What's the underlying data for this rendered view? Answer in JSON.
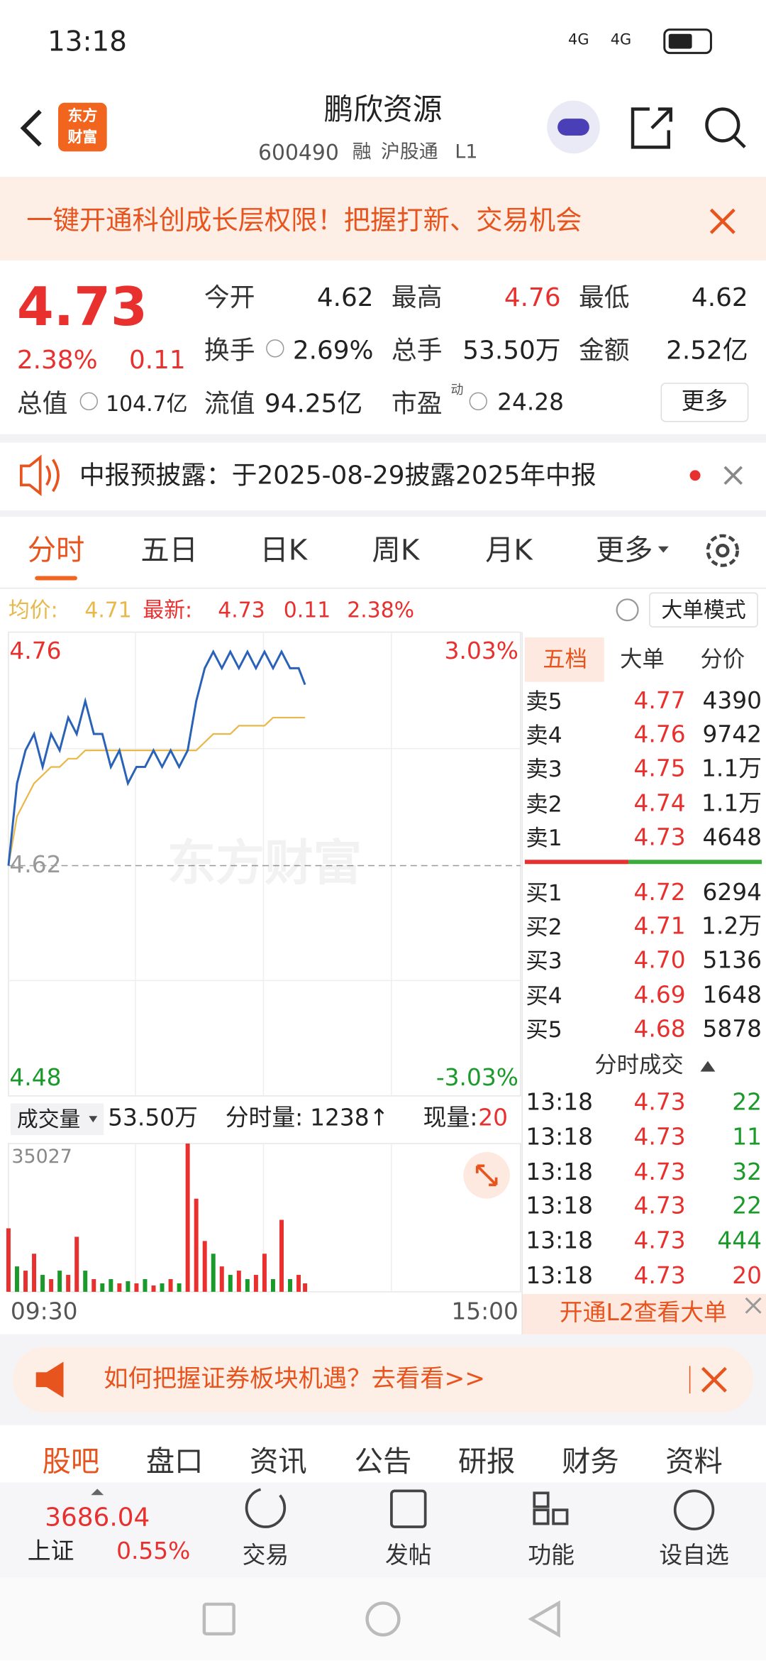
{
  "status": {
    "time": "13:18",
    "network": [
      "4G",
      "4G"
    ]
  },
  "header": {
    "logo": [
      "东方",
      "财富"
    ],
    "title": "鹏欣资源",
    "code": "600490",
    "tags": [
      "融",
      "沪股通",
      "L1"
    ]
  },
  "banner": "一键开通科创成长层权限！把握打新、交易机会",
  "quote": {
    "price": "4.73",
    "change_pct": "2.38%",
    "change": "0.11",
    "more": "更多",
    "stats": [
      {
        "label": "今开",
        "value": "4.62"
      },
      {
        "label": "最高",
        "value": "4.76"
      },
      {
        "label": "最低",
        "value": "4.62"
      },
      {
        "label": "换手",
        "value": "2.69%"
      },
      {
        "label": "总手",
        "value": "53.50万"
      },
      {
        "label": "金额",
        "value": "2.52亿"
      },
      {
        "label": "总值",
        "value": "104.7亿"
      },
      {
        "label": "流值",
        "value": "94.25亿"
      },
      {
        "label": "市盈",
        "sup": "动",
        "value": "24.28"
      }
    ]
  },
  "notice": "中报预披露：于2025-08-29披露2025年中报",
  "tabs": [
    "分时",
    "五日",
    "日K",
    "周K",
    "月K",
    "更多"
  ],
  "info": {
    "avg_label": "均价:",
    "avg": "4.71",
    "last_label": "最新:",
    "last": "4.73",
    "change": "0.11",
    "change_pct": "2.38%",
    "mode": "大单模式"
  },
  "intraday": {
    "watermark": "东方财富",
    "xlim": [
      0,
      240
    ],
    "xticks": [
      {
        "value": 0,
        "label": "09:30"
      },
      {
        "value": 240,
        "label": "15:00"
      }
    ],
    "ylim": [
      4.48,
      4.76
    ],
    "yticks": [
      4.76,
      4.62,
      4.48
    ],
    "y2lim": [
      -3.03,
      3.03
    ],
    "y2ticks": [
      {
        "value": 3.03,
        "label": "3.03%"
      },
      {
        "value": -3.03,
        "label": "-3.03%"
      }
    ],
    "x": [
      0,
      4,
      8,
      12,
      16,
      20,
      24,
      28,
      32,
      36,
      40,
      44,
      48,
      52,
      56,
      60,
      64,
      68,
      72,
      76,
      80,
      84,
      88,
      92,
      96,
      100,
      104,
      108,
      112,
      116,
      120,
      124,
      128,
      132,
      136,
      139
    ],
    "series": [
      {
        "color": "#2a62b8",
        "values": [
          4.62,
          4.67,
          4.69,
          4.7,
          4.68,
          4.7,
          4.69,
          4.71,
          4.7,
          4.72,
          4.7,
          4.7,
          4.68,
          4.69,
          4.67,
          4.68,
          4.68,
          4.69,
          4.68,
          4.69,
          4.68,
          4.69,
          4.72,
          4.74,
          4.75,
          4.74,
          4.75,
          4.74,
          4.75,
          4.74,
          4.75,
          4.74,
          4.75,
          4.74,
          4.74,
          4.73
        ]
      },
      {
        "color": "#e8b84a",
        "values": [
          4.62,
          4.65,
          4.66,
          4.67,
          4.675,
          4.68,
          4.68,
          4.685,
          4.685,
          4.69,
          4.69,
          4.69,
          4.69,
          4.69,
          4.69,
          4.69,
          4.69,
          4.69,
          4.69,
          4.69,
          4.69,
          4.69,
          4.69,
          4.695,
          4.7,
          4.7,
          4.7,
          4.705,
          4.705,
          4.705,
          4.705,
          4.71,
          4.71,
          4.71,
          4.71,
          4.71
        ]
      }
    ]
  },
  "volume": {
    "label": "成交量",
    "total": "53.50万",
    "minute_label": "分时量:",
    "minute": "1238↑",
    "current_label": "现量:",
    "current": "20",
    "ylim": [
      0,
      35027
    ],
    "yticks": [
      35027
    ],
    "values": [
      15000,
      6000,
      5000,
      9000,
      4000,
      3000,
      5000,
      4000,
      13000,
      5000,
      3000,
      2000,
      3000,
      2000,
      2500,
      2000,
      3000,
      1500,
      2000,
      3000,
      2000,
      35027,
      22000,
      12000,
      9000,
      6000,
      4000,
      5000,
      3000,
      4000,
      9000,
      3000,
      17000,
      3000,
      4000,
      2000
    ],
    "colors": [
      "#e8302e",
      "#1a9a2a",
      "#e8302e",
      "#e8302e",
      "#1a9a2a",
      "#e8302e",
      "#1a9a2a",
      "#e8302e",
      "#e8302e",
      "#1a9a2a",
      "#e8302e",
      "#1a9a2a",
      "#1a9a2a",
      "#e8302e",
      "#1a9a2a",
      "#e8302e",
      "#1a9a2a",
      "#e8302e",
      "#1a9a2a",
      "#e8302e",
      "#1a9a2a",
      "#e8302e",
      "#e8302e",
      "#e8302e",
      "#1a9a2a",
      "#e8302e",
      "#1a9a2a",
      "#e8302e",
      "#1a9a2a",
      "#e8302e",
      "#e8302e",
      "#1a9a2a",
      "#e8302e",
      "#1a9a2a",
      "#e8302e",
      "#e8302e"
    ]
  },
  "book": {
    "tabs": [
      "五档",
      "大单",
      "分价"
    ],
    "sell": [
      {
        "label": "卖5",
        "price": "4.77",
        "volume": "4390"
      },
      {
        "label": "卖4",
        "price": "4.76",
        "volume": "9742"
      },
      {
        "label": "卖3",
        "price": "4.75",
        "volume": "1.1万"
      },
      {
        "label": "卖2",
        "price": "4.74",
        "volume": "1.1万"
      },
      {
        "label": "卖1",
        "price": "4.73",
        "volume": "4648"
      }
    ],
    "buy": [
      {
        "label": "买1",
        "price": "4.72",
        "volume": "6294"
      },
      {
        "label": "买2",
        "price": "4.71",
        "volume": "1.2万"
      },
      {
        "label": "买3",
        "price": "4.70",
        "volume": "5136"
      },
      {
        "label": "买4",
        "price": "4.69",
        "volume": "1648"
      },
      {
        "label": "买5",
        "price": "4.68",
        "volume": "5878"
      }
    ],
    "trades_title": "分时成交",
    "trades": [
      {
        "time": "13:18",
        "price": "4.73",
        "volume": "22",
        "color": "#1a9a2a"
      },
      {
        "time": "13:18",
        "price": "4.73",
        "volume": "11",
        "color": "#1a9a2a"
      },
      {
        "time": "13:18",
        "price": "4.73",
        "volume": "32",
        "color": "#1a9a2a"
      },
      {
        "time": "13:18",
        "price": "4.73",
        "volume": "22",
        "color": "#1a9a2a"
      },
      {
        "time": "13:18",
        "price": "4.73",
        "volume": "444",
        "color": "#1a9a2a"
      },
      {
        "time": "13:18",
        "price": "4.73",
        "volume": "20",
        "color": "#e8302e"
      }
    ],
    "l2": "开通L2查看大单"
  },
  "promo": "如何把握证券板块机遇？去看看>>",
  "section_tabs": [
    "股吧",
    "盘口",
    "资讯",
    "公告",
    "研报",
    "财务",
    "资料"
  ],
  "bottom_nav": {
    "index_value": "3686.04",
    "index_name": "上证",
    "index_change": "0.55%",
    "items": [
      "交易",
      "发帖",
      "功能",
      "设自选"
    ]
  }
}
